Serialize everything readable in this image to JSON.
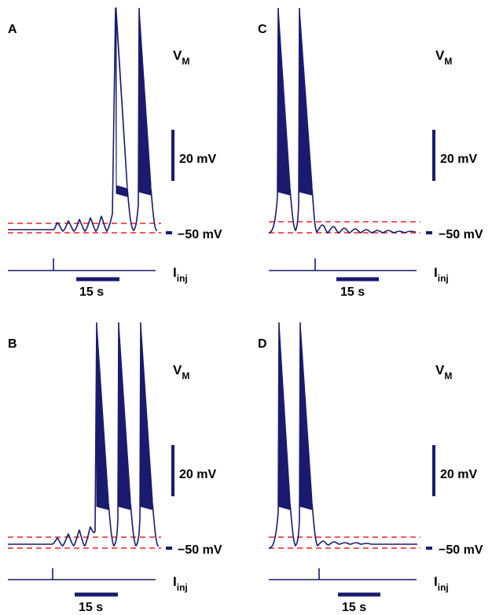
{
  "labels": {
    "vm_main": "V",
    "vm_sub": "M",
    "scale_mv": "20 mV",
    "ref_mv": "−50 mV",
    "iinj_main": "I",
    "iinj_sub": "inj",
    "time_scale": "15 s"
  },
  "panels": [
    {
      "id": "a",
      "letter": "A"
    },
    {
      "id": "b",
      "letter": "B"
    },
    {
      "id": "c",
      "letter": "C"
    },
    {
      "id": "d",
      "letter": "D"
    }
  ],
  "colors": {
    "trace": "#1a1a6e",
    "threshold_lines": "#e8222a",
    "background": "#ffffff"
  }
}
